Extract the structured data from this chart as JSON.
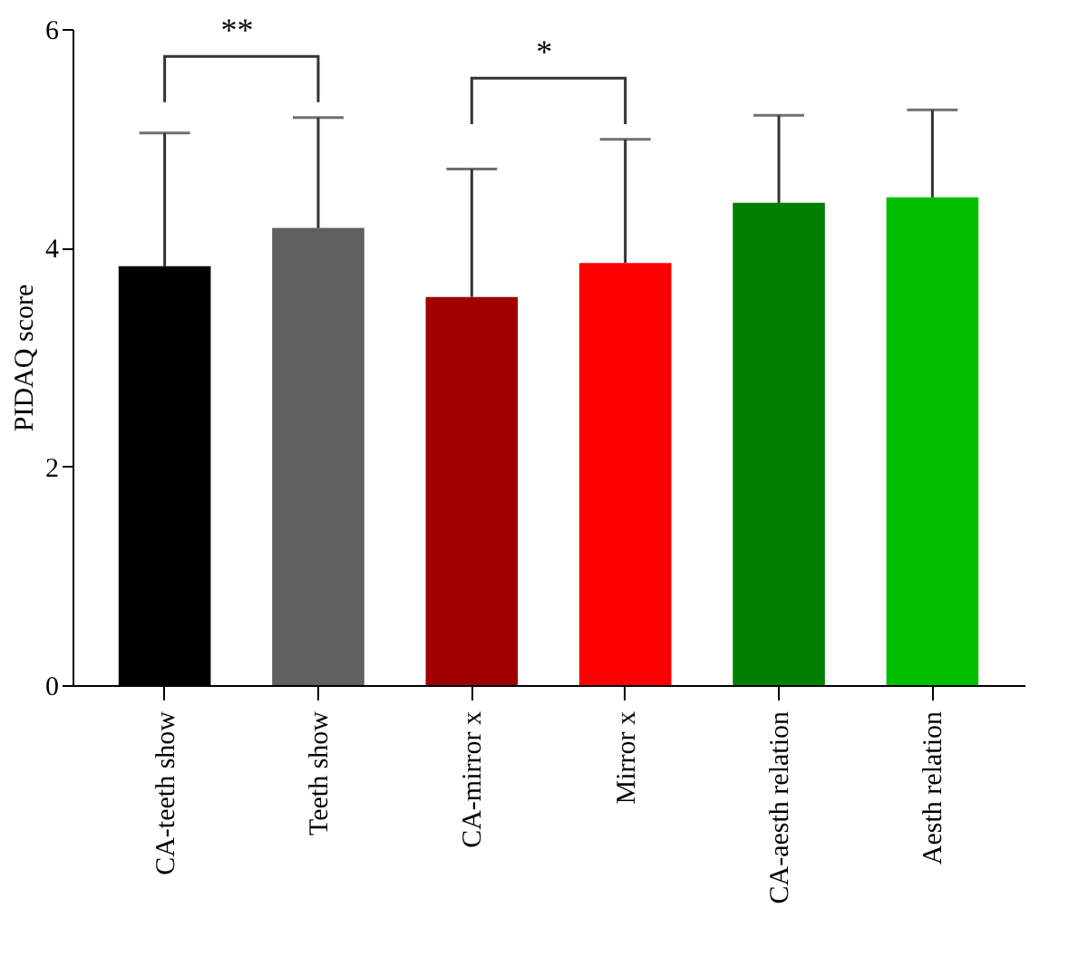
{
  "chart_data": {
    "type": "bar",
    "ylabel": "PIDAQ  score",
    "categories": [
      "CA-teeth show",
      "Teeth show",
      "CA-mirror x",
      "Mirror x",
      "CA-aesth relation",
      "Aesth relation"
    ],
    "values": [
      3.83,
      4.18,
      3.55,
      3.86,
      4.41,
      4.46
    ],
    "colors": [
      "#000000",
      "#606060",
      "#a00000",
      "#ff0000",
      "#008000",
      "#00c000"
    ],
    "errors": [
      [
        3.83,
        5.05
      ],
      [
        4.18,
        5.19
      ],
      [
        3.55,
        4.72
      ],
      [
        3.86,
        4.99
      ],
      [
        4.41,
        5.21
      ],
      [
        4.46,
        5.26
      ]
    ],
    "ylim": [
      0,
      6
    ],
    "yticks": [
      0,
      2,
      4,
      6
    ],
    "grid": false,
    "annotations": [
      "**",
      "*"
    ]
  }
}
